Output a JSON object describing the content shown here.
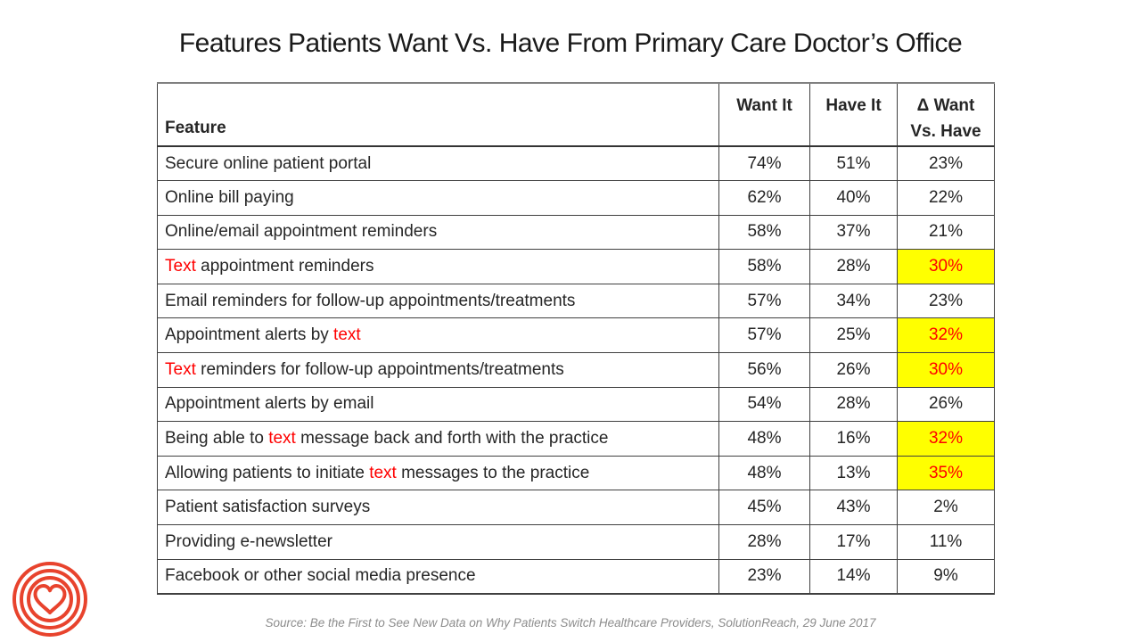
{
  "title": "Features Patients Want Vs. Have From Primary Care Doctor’s Office",
  "table": {
    "headers": {
      "feature": "Feature",
      "want": "Want It",
      "have": "Have It",
      "delta_line1": "Δ Want",
      "delta_line2": "Vs. Have"
    },
    "rows": [
      {
        "feature_parts": [
          {
            "text": "Secure online patient portal",
            "red": false
          }
        ],
        "want": "74%",
        "have": "51%",
        "delta": "23%",
        "highlight": false
      },
      {
        "feature_parts": [
          {
            "text": "Online bill paying",
            "red": false
          }
        ],
        "want": "62%",
        "have": "40%",
        "delta": "22%",
        "highlight": false
      },
      {
        "feature_parts": [
          {
            "text": "Online/email appointment reminders",
            "red": false
          }
        ],
        "want": "58%",
        "have": "37%",
        "delta": "21%",
        "highlight": false
      },
      {
        "feature_parts": [
          {
            "text": "Text",
            "red": true
          },
          {
            "text": " appointment reminders",
            "red": false
          }
        ],
        "want": "58%",
        "have": "28%",
        "delta": "30%",
        "highlight": true
      },
      {
        "feature_parts": [
          {
            "text": "Email reminders for follow-up appointments/treatments",
            "red": false
          }
        ],
        "want": "57%",
        "have": "34%",
        "delta": "23%",
        "highlight": false
      },
      {
        "feature_parts": [
          {
            "text": "Appointment alerts by ",
            "red": false
          },
          {
            "text": "text",
            "red": true
          }
        ],
        "want": "57%",
        "have": "25%",
        "delta": "32%",
        "highlight": true
      },
      {
        "feature_parts": [
          {
            "text": "Text",
            "red": true
          },
          {
            "text": " reminders for follow-up appointments/treatments",
            "red": false
          }
        ],
        "want": "56%",
        "have": "26%",
        "delta": "30%",
        "highlight": true
      },
      {
        "feature_parts": [
          {
            "text": "Appointment alerts by email",
            "red": false
          }
        ],
        "want": "54%",
        "have": "28%",
        "delta": "26%",
        "highlight": false
      },
      {
        "feature_parts": [
          {
            "text": "Being able to ",
            "red": false
          },
          {
            "text": "text",
            "red": true
          },
          {
            "text": " message back and forth with the practice",
            "red": false
          }
        ],
        "want": "48%",
        "have": "16%",
        "delta": "32%",
        "highlight": true
      },
      {
        "feature_parts": [
          {
            "text": "Allowing patients to initiate ",
            "red": false
          },
          {
            "text": "text",
            "red": true
          },
          {
            "text": " messages to the practice",
            "red": false
          }
        ],
        "want": "48%",
        "have": "13%",
        "delta": "35%",
        "highlight": true
      },
      {
        "feature_parts": [
          {
            "text": "Patient satisfaction surveys",
            "red": false
          }
        ],
        "want": "45%",
        "have": "43%",
        "delta": "2%",
        "highlight": false
      },
      {
        "feature_parts": [
          {
            "text": "Providing e-newsletter",
            "red": false
          }
        ],
        "want": "28%",
        "have": "17%",
        "delta": "11%",
        "highlight": false
      },
      {
        "feature_parts": [
          {
            "text": "Facebook or other social media presence",
            "red": false
          }
        ],
        "want": "23%",
        "have": "14%",
        "delta": "9%",
        "highlight": false
      }
    ]
  },
  "source": "Source: Be the First to See New Data on Why Patients Switch Healthcare Providers, SolutionReach, 29 June 2017",
  "colors": {
    "highlight_yellow": "#ffff00",
    "accent_red": "#ff0000",
    "logo_red": "#e8432d",
    "body_text": "#262626",
    "source_gray": "#8c8c8c"
  },
  "logo": {
    "name": "heart-target-logo"
  }
}
